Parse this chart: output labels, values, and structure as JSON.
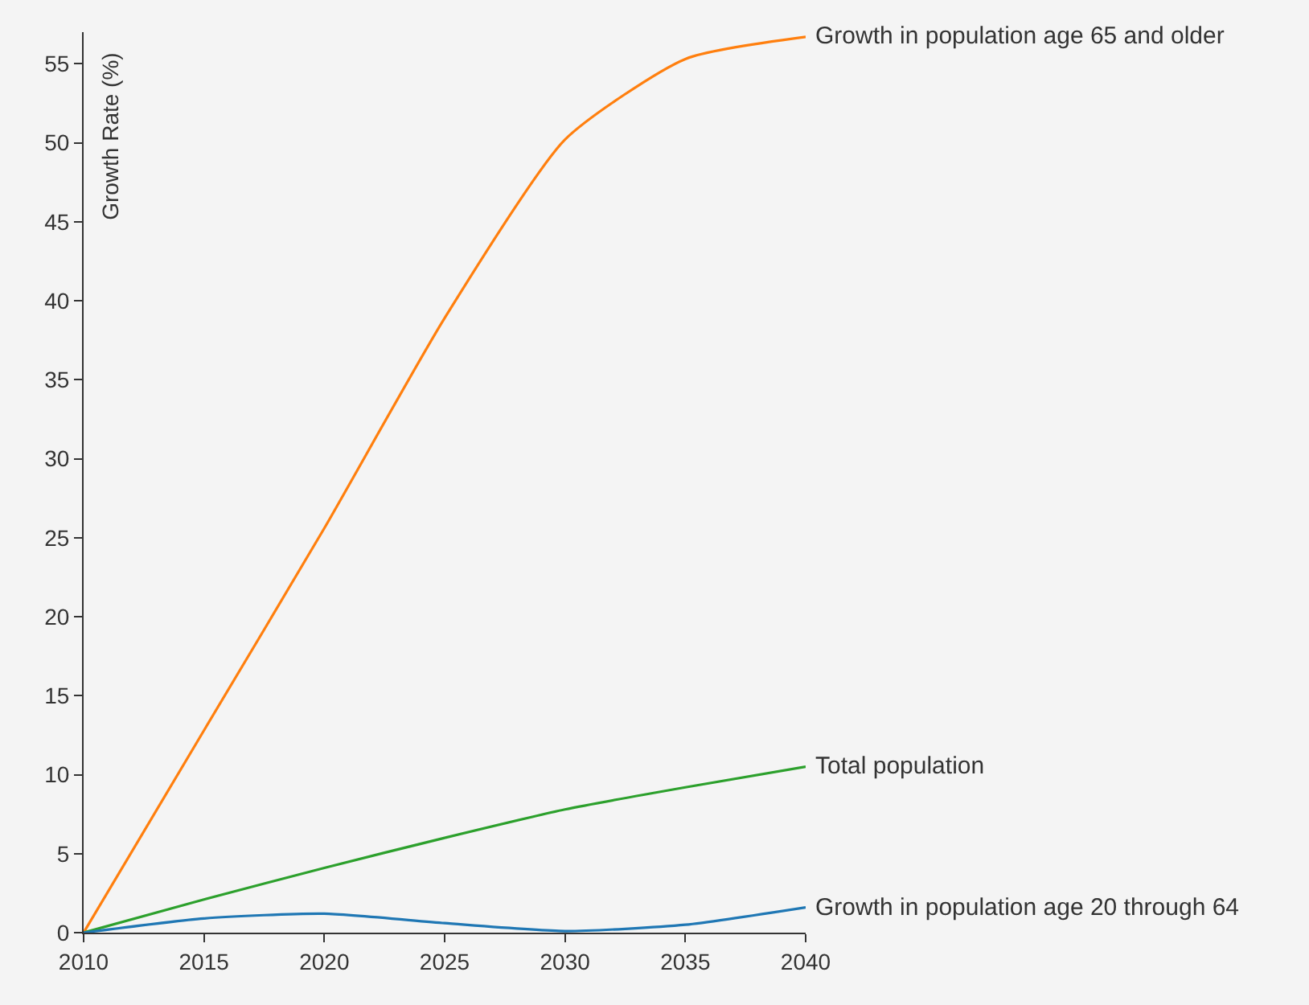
{
  "chart_data": {
    "type": "line",
    "ylabel": "Growth Rate (%)",
    "x": [
      2010,
      2015,
      2020,
      2025,
      2030,
      2035,
      2040
    ],
    "series": [
      {
        "name": "Growth in population age 65 and older",
        "color": "#ff7f0e",
        "values": [
          0,
          12.8,
          25.6,
          38.9,
          50.2,
          55.3,
          56.7
        ]
      },
      {
        "name": "Total population",
        "color": "#2ca02c",
        "values": [
          0,
          2.1,
          4.1,
          6.0,
          7.8,
          9.2,
          10.5
        ]
      },
      {
        "name": "Growth in population age 20 through 64",
        "color": "#1f77b4",
        "values": [
          0,
          0.9,
          1.2,
          0.6,
          0.1,
          0.5,
          1.6
        ]
      }
    ],
    "xlim": [
      2010,
      2040
    ],
    "xticks": [
      2010,
      2015,
      2020,
      2025,
      2030,
      2035,
      2040
    ],
    "ylim": [
      0,
      57
    ],
    "yticks": [
      0,
      5,
      10,
      15,
      20,
      25,
      30,
      35,
      40,
      45,
      50,
      55
    ],
    "grid": false,
    "legend": false,
    "marker": "none",
    "line_style": "solid"
  }
}
